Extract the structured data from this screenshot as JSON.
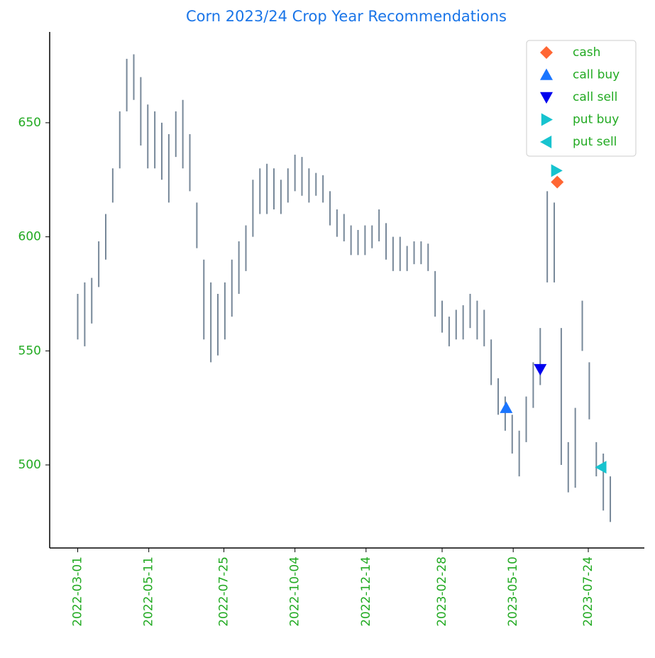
{
  "chart_data": {
    "type": "range",
    "title": "Corn 2023/24 Crop Year Recommendations",
    "x": [
      "2022-03-01",
      "2022-03-08",
      "2022-03-15",
      "2022-03-22",
      "2022-03-29",
      "2022-04-05",
      "2022-04-12",
      "2022-04-19",
      "2022-04-26",
      "2022-05-03",
      "2022-05-10",
      "2022-05-17",
      "2022-05-24",
      "2022-05-31",
      "2022-06-07",
      "2022-06-14",
      "2022-06-21",
      "2022-06-28",
      "2022-07-05",
      "2022-07-12",
      "2022-07-19",
      "2022-07-26",
      "2022-08-02",
      "2022-08-09",
      "2022-08-16",
      "2022-08-23",
      "2022-08-30",
      "2022-09-06",
      "2022-09-13",
      "2022-09-20",
      "2022-09-27",
      "2022-10-04",
      "2022-10-11",
      "2022-10-18",
      "2022-10-25",
      "2022-11-01",
      "2022-11-08",
      "2022-11-15",
      "2022-11-22",
      "2022-11-29",
      "2022-12-06",
      "2022-12-13",
      "2022-12-20",
      "2022-12-27",
      "2023-01-03",
      "2023-01-10",
      "2023-01-17",
      "2023-01-24",
      "2023-01-31",
      "2023-02-07",
      "2023-02-14",
      "2023-02-21",
      "2023-02-28",
      "2023-03-07",
      "2023-03-14",
      "2023-03-21",
      "2023-03-28",
      "2023-04-04",
      "2023-04-11",
      "2023-04-18",
      "2023-04-25",
      "2023-05-02",
      "2023-05-09",
      "2023-05-16",
      "2023-05-23",
      "2023-05-30",
      "2023-06-06",
      "2023-06-13",
      "2023-06-20",
      "2023-06-27",
      "2023-07-04",
      "2023-07-11",
      "2023-07-18",
      "2023-07-25",
      "2023-08-01",
      "2023-08-08",
      "2023-08-15"
    ],
    "low": [
      555,
      552,
      562,
      578,
      590,
      615,
      630,
      655,
      660,
      640,
      630,
      630,
      625,
      615,
      635,
      630,
      620,
      595,
      555,
      545,
      548,
      555,
      565,
      575,
      585,
      600,
      610,
      610,
      612,
      610,
      615,
      620,
      618,
      615,
      618,
      615,
      605,
      600,
      598,
      592,
      592,
      592,
      595,
      598,
      590,
      585,
      585,
      585,
      588,
      588,
      585,
      565,
      558,
      552,
      555,
      555,
      560,
      555,
      552,
      535,
      522,
      515,
      505,
      495,
      510,
      525,
      535,
      580,
      580,
      500,
      488,
      490,
      550,
      520,
      495,
      480,
      475
    ],
    "high": [
      575,
      580,
      582,
      598,
      610,
      630,
      655,
      678,
      680,
      670,
      658,
      655,
      650,
      645,
      655,
      660,
      645,
      615,
      590,
      580,
      575,
      580,
      590,
      598,
      605,
      625,
      630,
      632,
      630,
      625,
      630,
      636,
      635,
      630,
      628,
      627,
      620,
      612,
      610,
      605,
      603,
      605,
      605,
      612,
      606,
      600,
      600,
      596,
      598,
      598,
      597,
      585,
      572,
      565,
      568,
      570,
      575,
      572,
      568,
      555,
      538,
      530,
      522,
      515,
      530,
      545,
      560,
      620,
      615,
      560,
      510,
      525,
      572,
      545,
      510,
      505,
      495
    ],
    "color": "#778899",
    "markers": [
      {
        "name": "cash",
        "color": "#ff6633",
        "shape": "diamond",
        "x": "2023-06-23",
        "y": 624
      },
      {
        "name": "call buy",
        "color": "#1a75ff",
        "shape": "up",
        "x": "2023-05-03",
        "y": 525
      },
      {
        "name": "call sell",
        "color": "#0000ee",
        "shape": "down",
        "x": "2023-06-06",
        "y": 542
      },
      {
        "name": "put buy",
        "color": "#17c3cf",
        "shape": "right",
        "x": "2023-06-22",
        "y": 629
      },
      {
        "name": "put sell",
        "color": "#17c3cf",
        "shape": "left",
        "x": "2023-08-06",
        "y": 499
      }
    ],
    "xlim": [
      "2022-02-01",
      "2023-09-18"
    ],
    "xticks": [
      "2022-03-01",
      "2022-05-11",
      "2022-07-25",
      "2022-10-04",
      "2022-12-14",
      "2023-02-28",
      "2023-05-10",
      "2023-07-24"
    ],
    "ylim": [
      463.6,
      689.8
    ],
    "yticks": [
      500,
      550,
      600,
      650
    ]
  }
}
